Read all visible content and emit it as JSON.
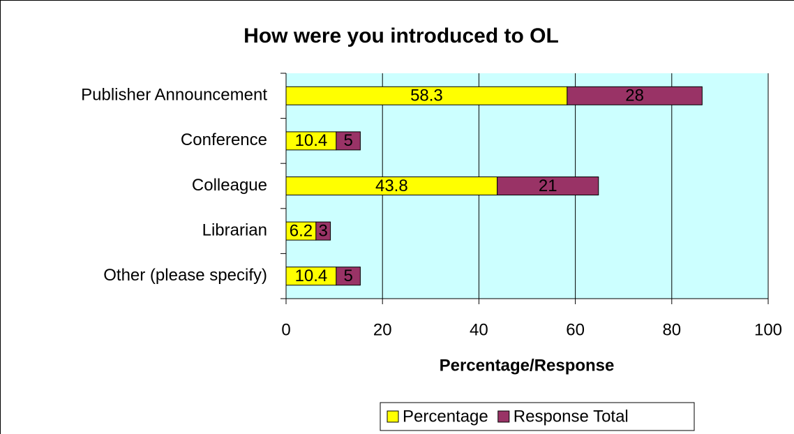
{
  "chart_data": {
    "type": "stacked-bar-horizontal",
    "title": "How were you introduced to OL",
    "x_label": "Percentage/Response",
    "categories": [
      "Publisher Announcement",
      "Conference",
      "Colleague",
      "Librarian",
      "Other (please specify)"
    ],
    "series": [
      {
        "name": "Percentage",
        "color": "#ffff00",
        "values": [
          58.3,
          10.4,
          43.8,
          6.2,
          10.4
        ]
      },
      {
        "name": "Response Total",
        "color": "#993366",
        "values": [
          28,
          5,
          21,
          3,
          5
        ]
      }
    ],
    "xlim": [
      0,
      100
    ],
    "xticks": [
      0,
      20,
      40,
      60,
      80,
      100
    ],
    "grid": true,
    "legend": "bottom",
    "plot_background": "#ccffff"
  }
}
